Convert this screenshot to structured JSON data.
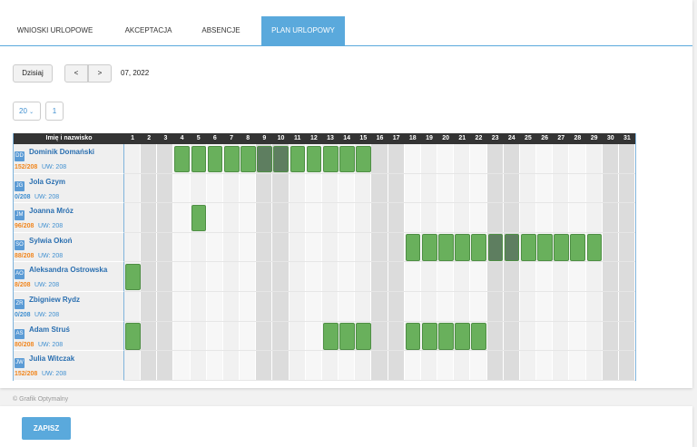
{
  "tabs": [
    "WNIOSKI URLOPOWE",
    "AKCEPTACJA",
    "ABSENCJE",
    "PLAN URLOPOWY"
  ],
  "active_tab": 3,
  "toolbar": {
    "today": "Dzisiaj",
    "prev": "<",
    "next": ">",
    "period": "07, 2022"
  },
  "pager": {
    "page_size": "20",
    "page": "1"
  },
  "table": {
    "name_header": "Imię i nazwisko",
    "days": [
      1,
      2,
      3,
      4,
      5,
      6,
      7,
      8,
      9,
      10,
      11,
      12,
      13,
      14,
      15,
      16,
      17,
      18,
      19,
      20,
      21,
      22,
      23,
      24,
      25,
      26,
      27,
      28,
      29,
      30,
      31
    ],
    "weekends": [
      2,
      3,
      9,
      10,
      16,
      17,
      23,
      24,
      30,
      31
    ],
    "rows": [
      {
        "initials": "DD",
        "name": "Dominik Domański",
        "used": "152/208",
        "used_color": "#f0861e",
        "limit": "UW: 208",
        "leave_days": [
          4,
          5,
          6,
          7,
          8,
          9,
          10,
          11,
          12,
          13,
          14,
          15
        ]
      },
      {
        "initials": "JG",
        "name": "Jola Gzym",
        "used": "0/208",
        "used_color": "#3f8fd0",
        "limit": "UW: 208",
        "leave_days": []
      },
      {
        "initials": "JM",
        "name": "Joanna Mróz",
        "used": "96/208",
        "used_color": "#f0861e",
        "limit": "UW: 208",
        "leave_days": [
          5
        ]
      },
      {
        "initials": "SO",
        "name": "Sylwia Okoń",
        "used": "88/208",
        "used_color": "#f0861e",
        "limit": "UW: 208",
        "leave_days": [
          18,
          19,
          20,
          21,
          22,
          23,
          24,
          25,
          26,
          27,
          28,
          29
        ]
      },
      {
        "initials": "AO",
        "name": "Aleksandra Ostrowska",
        "used": "8/208",
        "used_color": "#f0861e",
        "limit": "UW: 208",
        "leave_days": [
          1
        ]
      },
      {
        "initials": "ZR",
        "name": "Zbigniew Rydz",
        "used": "0/208",
        "used_color": "#3f8fd0",
        "limit": "UW: 208",
        "leave_days": []
      },
      {
        "initials": "AS",
        "name": "Adam Struś",
        "used": "80/208",
        "used_color": "#f0861e",
        "limit": "UW: 208",
        "leave_days": [
          1,
          13,
          14,
          15,
          18,
          19,
          20,
          21,
          22
        ]
      },
      {
        "initials": "JW",
        "name": "Julia Witczak",
        "used": "152/208",
        "used_color": "#f0861e",
        "limit": "UW: 208",
        "leave_days": []
      }
    ]
  },
  "footer": "© Grafik Optymalny",
  "save": "ZAPISZ"
}
